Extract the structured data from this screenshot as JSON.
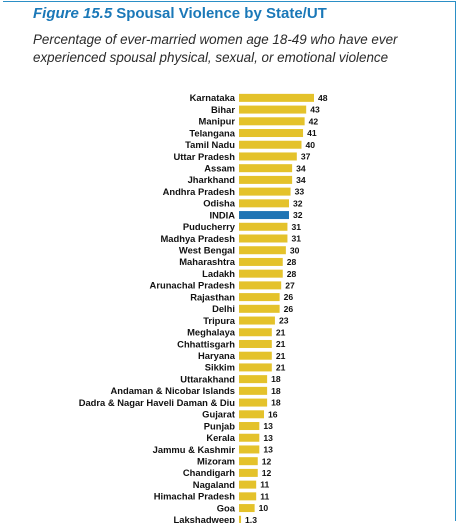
{
  "header": {
    "figure_label": "Figure 15.5",
    "title": "Spousal  Violence by State/UT",
    "subtitle": "Percentage of ever-married women age 18-49 who have ever experienced spousal physical, sexual, or emotional violence"
  },
  "colors": {
    "bar": "#e4c22b",
    "highlight": "#1f74b4",
    "border": "#2b8fc6"
  },
  "chart_data": {
    "type": "bar",
    "orientation": "horizontal",
    "title": "Spousal  Violence by State/UT",
    "subtitle": "Percentage of ever-married women age 18-49 who have ever experienced spousal physical, sexual, or emotional violence",
    "highlight_category": "INDIA",
    "grid": false,
    "legend": "none",
    "xlim": [
      0,
      48
    ],
    "categories": [
      "Karnataka",
      "Bihar",
      "Manipur",
      "Telangana",
      "Tamil Nadu",
      "Uttar Pradesh",
      "Assam",
      "Jharkhand",
      "Andhra Pradesh",
      "Odisha",
      "INDIA",
      "Puducherry",
      "Madhya Pradesh",
      "West Bengal",
      "Maharashtra",
      "Ladakh",
      "Arunachal Pradesh",
      "Rajasthan",
      "Delhi",
      "Tripura",
      "Meghalaya",
      "Chhattisgarh",
      "Haryana",
      "Sikkim",
      "Uttarakhand",
      "Andaman & Nicobar Islands",
      "Dadra & Nagar Haveli Daman & Diu",
      "Gujarat",
      "Punjab",
      "Kerala",
      "Jammu & Kashmir",
      "Mizoram",
      "Chandigarh",
      "Nagaland",
      "Himachal Pradesh",
      "Goa",
      "Lakshadweep"
    ],
    "values": [
      48,
      43,
      42,
      41,
      40,
      37,
      34,
      34,
      33,
      32,
      32,
      31,
      31,
      30,
      28,
      28,
      27,
      26,
      26,
      23,
      21,
      21,
      21,
      21,
      18,
      18,
      18,
      16,
      13,
      13,
      13,
      12,
      12,
      11,
      11,
      10,
      1.3
    ],
    "value_labels": [
      "48",
      "43",
      "42",
      "41",
      "40",
      "37",
      "34",
      "34",
      "33",
      "32",
      "32",
      "31",
      "31",
      "30",
      "28",
      "28",
      "27",
      "26",
      "26",
      "23",
      "21",
      "21",
      "21",
      "21",
      "18",
      "18",
      "18",
      "16",
      "13",
      "13",
      "13",
      "12",
      "12",
      "11",
      "11",
      "10",
      "1.3"
    ]
  }
}
